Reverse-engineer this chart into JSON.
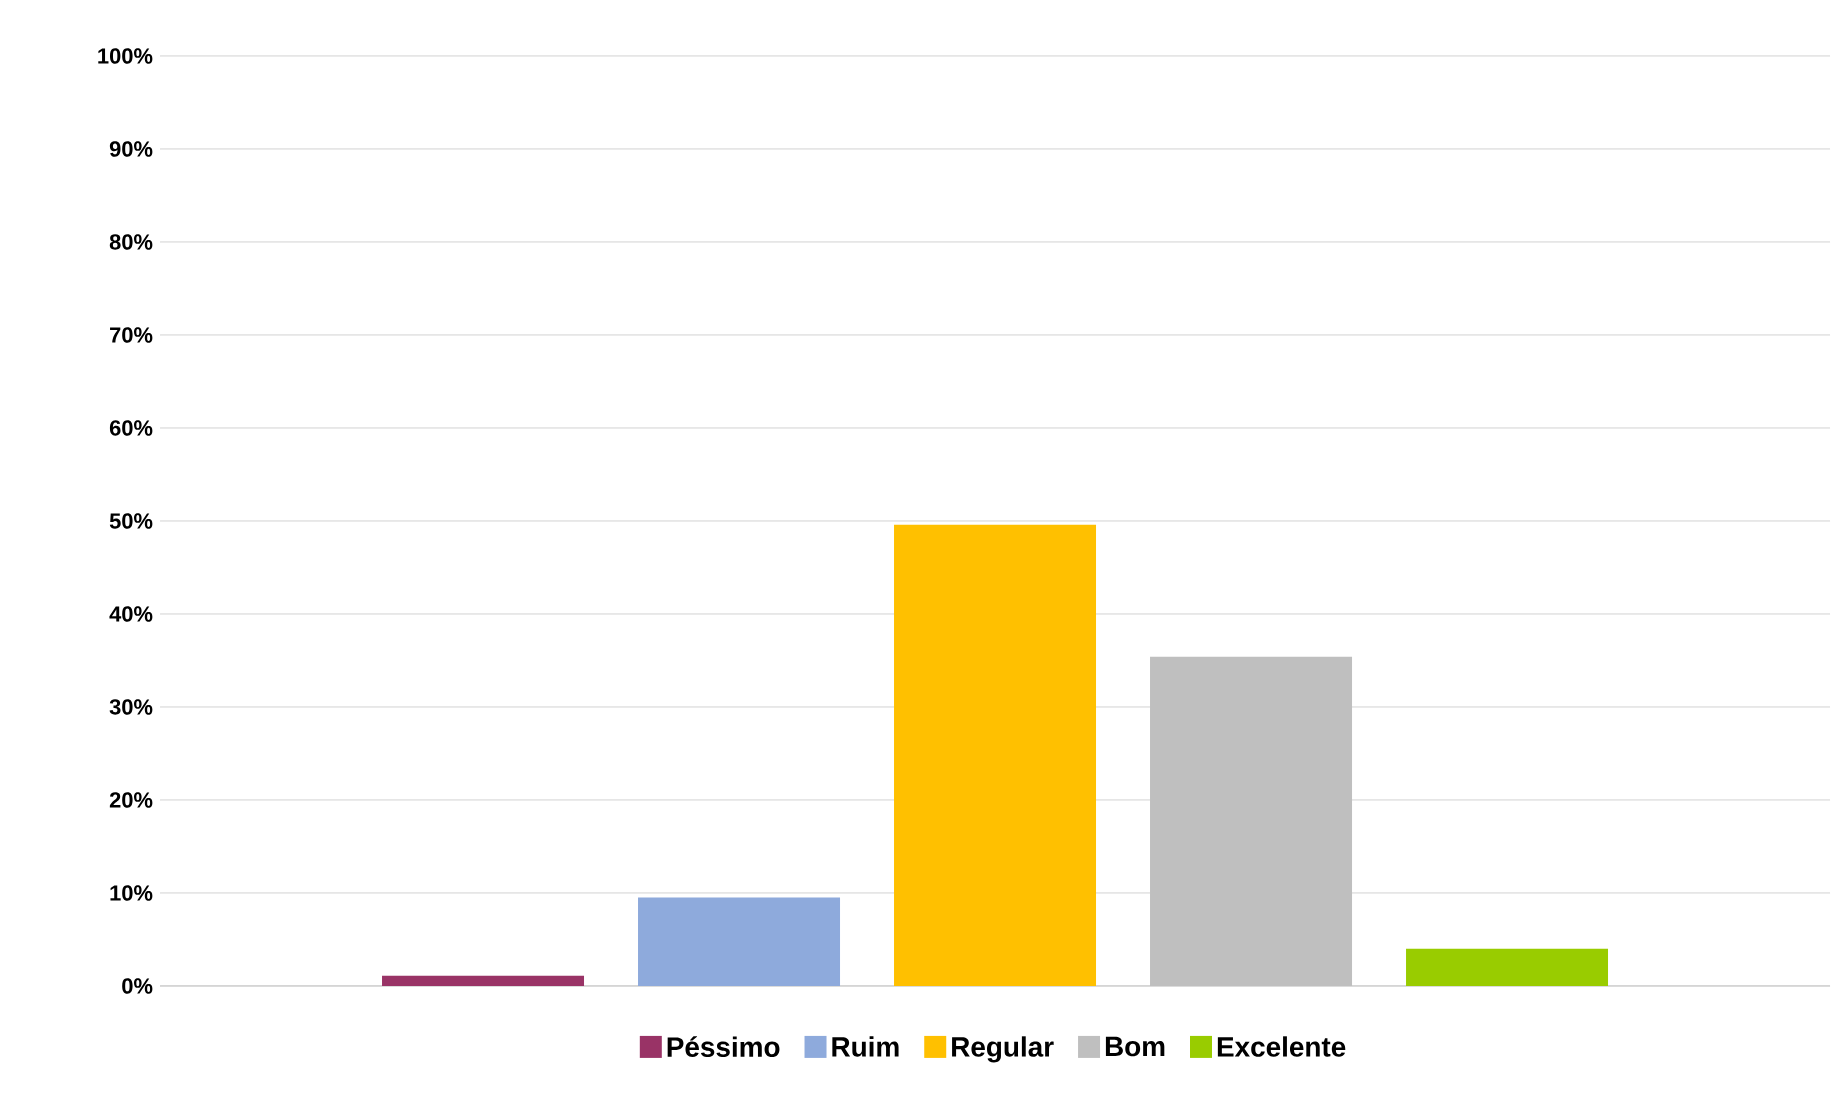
{
  "chart_data": {
    "type": "bar",
    "categories": [
      null
    ],
    "series": [
      {
        "name": "Péssimo",
        "color": "#993366",
        "values": [
          1.1
        ]
      },
      {
        "name": "Ruim",
        "color": "#8eaadc",
        "values": [
          9.5
        ]
      },
      {
        "name": "Regular",
        "color": "#ffc000",
        "values": [
          49.6
        ]
      },
      {
        "name": "Bom",
        "color": "#bfbfbf",
        "values": [
          35.4
        ]
      },
      {
        "name": "Excelente",
        "color": "#99cc00",
        "values": [
          4.0
        ]
      }
    ],
    "ylim": [
      0,
      100
    ],
    "yticks": [
      {
        "value": 0,
        "label": "0%"
      },
      {
        "value": 10,
        "label": "10%"
      },
      {
        "value": 20,
        "label": "20%"
      },
      {
        "value": 30,
        "label": "30%"
      },
      {
        "value": 40,
        "label": "40%"
      },
      {
        "value": 50,
        "label": "50%"
      },
      {
        "value": 60,
        "label": "60%"
      },
      {
        "value": 70,
        "label": "70%"
      },
      {
        "value": 80,
        "label": "80%"
      },
      {
        "value": 90,
        "label": "90%"
      },
      {
        "value": 100,
        "label": "100%"
      }
    ],
    "grid": "y",
    "legend": "bottom"
  }
}
